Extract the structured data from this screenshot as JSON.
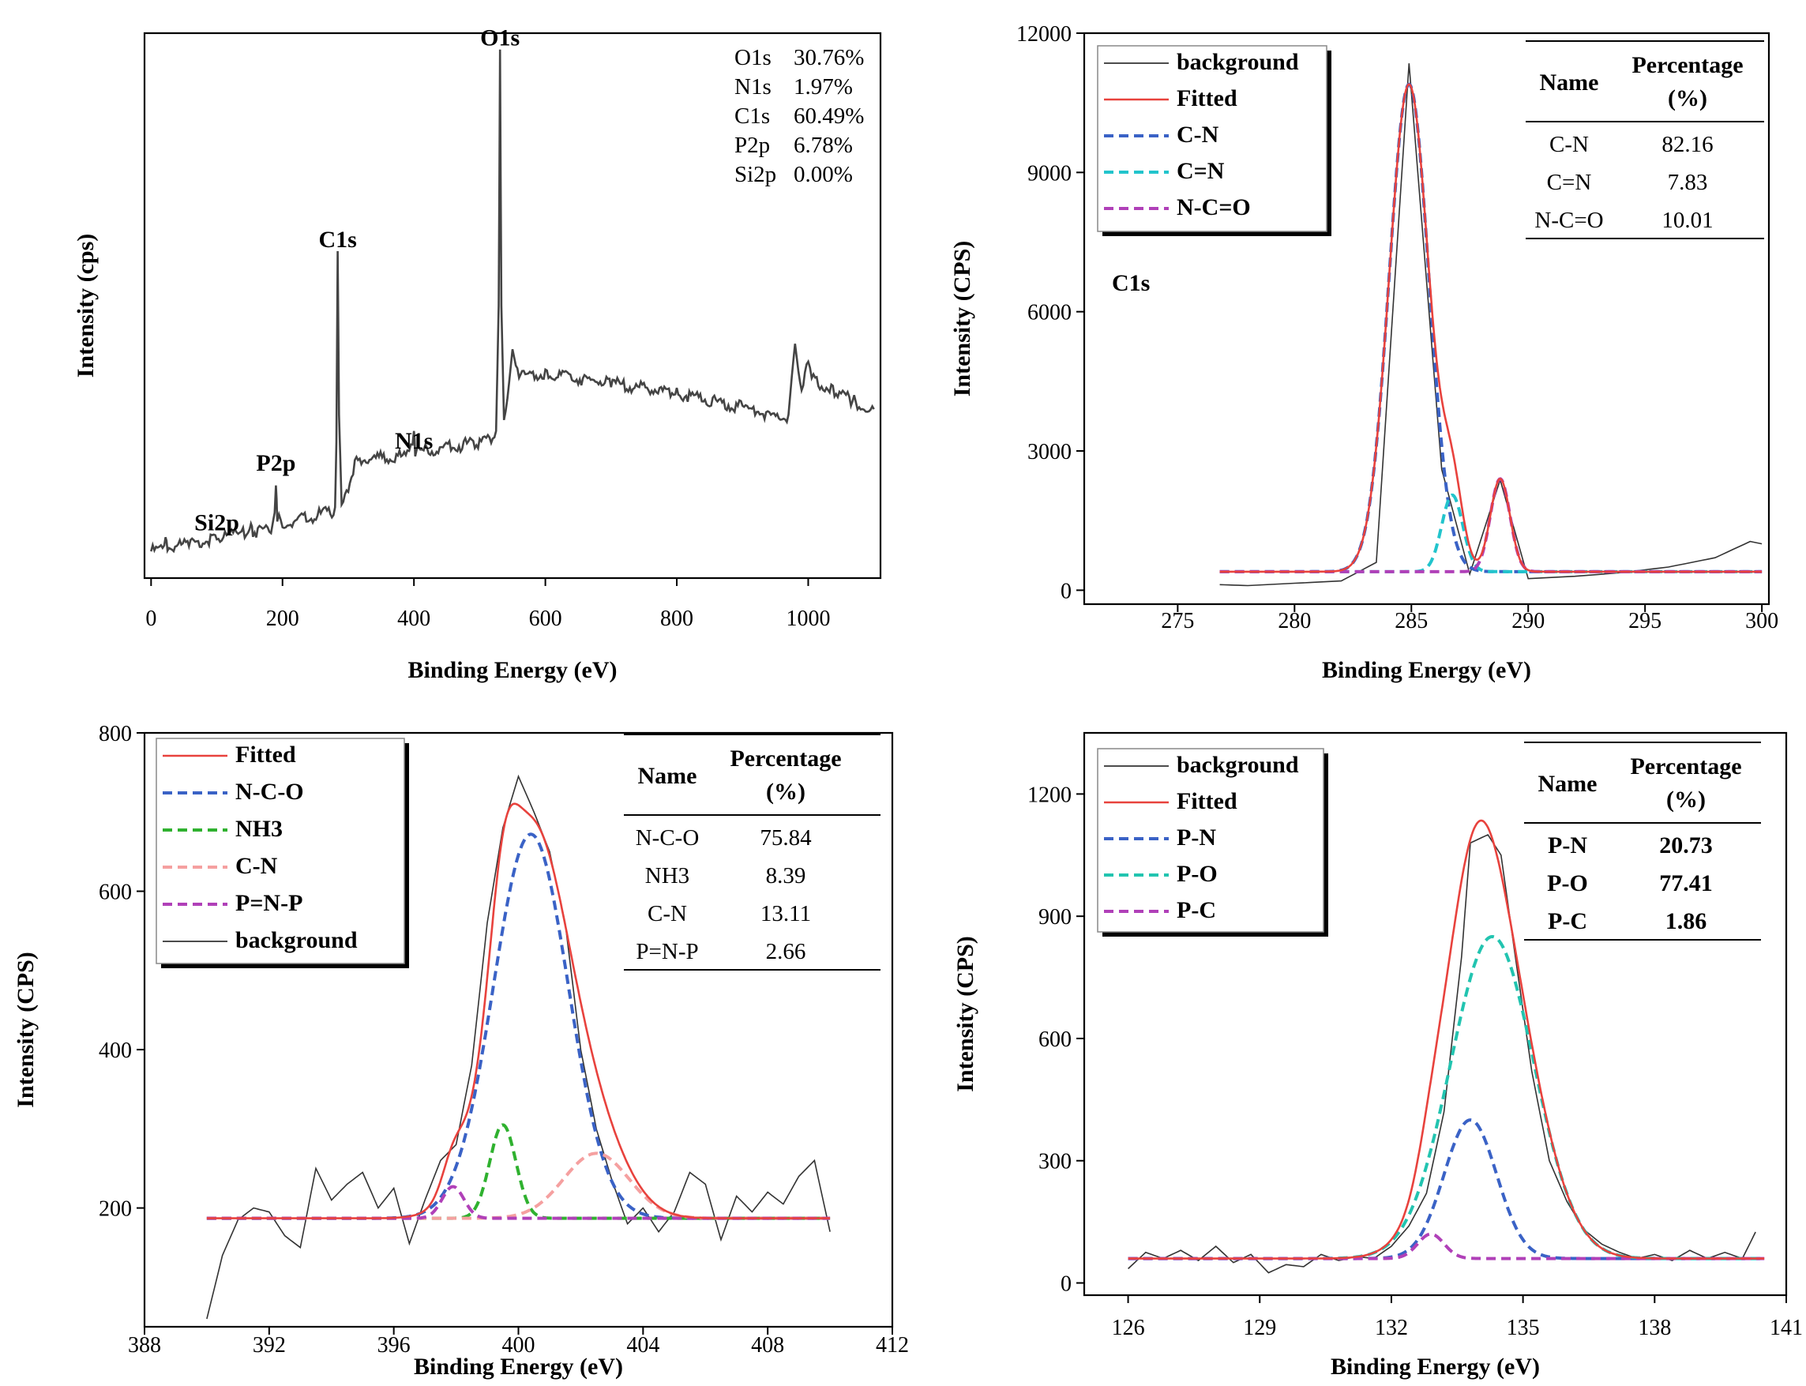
{
  "chart_data": [
    {
      "type": "line",
      "panel": "survey",
      "xlabel": "Binding Energy (eV)",
      "ylabel": "Intensity (cps)",
      "xlim": [
        -10,
        1110
      ],
      "ylim": [
        0,
        1
      ],
      "x_ticks": [
        0,
        200,
        400,
        600,
        800,
        1000
      ],
      "y_ticks_shown": false,
      "peak_labels": [
        {
          "text": "Si2p",
          "x": 100,
          "y": 0.07
        },
        {
          "text": "P2p",
          "x": 190,
          "y": 0.18
        },
        {
          "text": "C1s",
          "x": 284,
          "y": 0.59
        },
        {
          "text": "N1s",
          "x": 400,
          "y": 0.22
        },
        {
          "text": "O1s",
          "x": 531,
          "y": 0.96
        }
      ],
      "composition": [
        {
          "element": "O1s",
          "value": "30.76%"
        },
        {
          "element": "N1s",
          "value": "1.97%"
        },
        {
          "element": "C1s",
          "value": "60.49%"
        },
        {
          "element": "P2p",
          "value": "6.78%"
        },
        {
          "element": "Si2p",
          "value": "0.00%"
        }
      ],
      "series": [
        {
          "values": [
            [
              0,
              0.055
            ],
            [
              20,
              0.06
            ],
            [
              22,
              0.075
            ],
            [
              25,
              0.062
            ],
            [
              60,
              0.068
            ],
            [
              100,
              0.08
            ],
            [
              130,
              0.085
            ],
            [
              150,
              0.09
            ],
            [
              152,
              0.1
            ],
            [
              155,
              0.09
            ],
            [
              185,
              0.1
            ],
            [
              188,
              0.12
            ],
            [
              190,
              0.17
            ],
            [
              192,
              0.12
            ],
            [
              200,
              0.105
            ],
            [
              280,
              0.13
            ],
            [
              282,
              0.25
            ],
            [
              284,
              0.6
            ],
            [
              286,
              0.3
            ],
            [
              290,
              0.135
            ],
            [
              300,
              0.17
            ],
            [
              310,
              0.22
            ],
            [
              330,
              0.225
            ],
            [
              390,
              0.23
            ],
            [
              398,
              0.245
            ],
            [
              400,
              0.27
            ],
            [
              402,
              0.24
            ],
            [
              420,
              0.24
            ],
            [
              500,
              0.255
            ],
            [
              525,
              0.27
            ],
            [
              529,
              0.5
            ],
            [
              531,
              0.97
            ],
            [
              533,
              0.5
            ],
            [
              537,
              0.3
            ],
            [
              545,
              0.36
            ],
            [
              550,
              0.42
            ],
            [
              555,
              0.39
            ],
            [
              560,
              0.38
            ],
            [
              600,
              0.38
            ],
            [
              700,
              0.365
            ],
            [
              800,
              0.345
            ],
            [
              900,
              0.32
            ],
            [
              960,
              0.3
            ],
            [
              970,
              0.3
            ],
            [
              975,
              0.37
            ],
            [
              980,
              0.43
            ],
            [
              985,
              0.38
            ],
            [
              990,
              0.34
            ],
            [
              1000,
              0.41
            ],
            [
              1008,
              0.37
            ],
            [
              1040,
              0.35
            ],
            [
              1070,
              0.33
            ],
            [
              1090,
              0.32
            ],
            [
              1100,
              0.31
            ]
          ]
        }
      ]
    },
    {
      "type": "line",
      "panel": "C1s",
      "xlabel": "Binding Energy (eV)",
      "ylabel": "Intensity (CPS)",
      "panel_label": "C1s",
      "xlim": [
        271,
        300.3
      ],
      "ylim": [
        -300,
        12000
      ],
      "x_ticks": [
        275,
        280,
        285,
        290,
        295,
        300
      ],
      "y_ticks": [
        0,
        3000,
        6000,
        9000,
        12000
      ],
      "legend": [
        "background",
        "Fitted",
        "C-N",
        "C=N",
        "N-C=O"
      ],
      "legend_placement": "top-left",
      "table": {
        "headers": [
          "Name",
          "Percentage",
          "(%)"
        ],
        "rows": [
          [
            "C-N",
            "82.16"
          ],
          [
            "C=N",
            "7.83"
          ],
          [
            "N-C=O",
            "10.01"
          ]
        ]
      },
      "baseline": 400,
      "x_range": [
        276.8,
        300
      ],
      "components": [
        {
          "name": "C-N",
          "color": "#3a62c6",
          "center": 284.9,
          "amplitude": 10500,
          "sigma": 0.85
        },
        {
          "name": "C=N",
          "color": "#22c4cc",
          "center": 286.75,
          "amplitude": 1650,
          "sigma": 0.45
        },
        {
          "name": "N-C=O",
          "color": "#b040b8",
          "center": 288.8,
          "amplitude": 2000,
          "sigma": 0.42
        }
      ],
      "background": [
        [
          276.8,
          120
        ],
        [
          278,
          100
        ],
        [
          280,
          150
        ],
        [
          282,
          200
        ],
        [
          283.5,
          600
        ],
        [
          284.9,
          11350
        ],
        [
          286.3,
          2600
        ],
        [
          287.5,
          350
        ],
        [
          288.8,
          2380
        ],
        [
          290,
          250
        ],
        [
          292,
          300
        ],
        [
          294,
          380
        ],
        [
          296,
          500
        ],
        [
          298,
          700
        ],
        [
          299.5,
          1050
        ],
        [
          300,
          1000
        ]
      ]
    },
    {
      "type": "line",
      "panel": "N1s",
      "xlabel": "Binding Energy (eV)",
      "ylabel": "Intensity (CPS)",
      "xlim": [
        388,
        412
      ],
      "ylim": [
        50,
        800
      ],
      "x_ticks": [
        388,
        392,
        396,
        400,
        404,
        408,
        412
      ],
      "y_ticks": [
        200,
        400,
        600,
        800
      ],
      "legend": [
        "Fitted",
        "N-C-O",
        "NH3",
        "C-N",
        "P=N-P",
        "background"
      ],
      "legend_placement": "top-left",
      "table": {
        "headers": [
          "Name",
          "Percentage",
          "(%)"
        ],
        "rows": [
          [
            "N-C-O",
            "75.84"
          ],
          [
            "NH3",
            "8.39"
          ],
          [
            "C-N",
            "13.11"
          ],
          [
            "P=N-P",
            "2.66"
          ]
        ]
      },
      "baseline": 187,
      "x_range": [
        390,
        410
      ],
      "components": [
        {
          "name": "N-C-O",
          "color": "#3a62c6",
          "center": 400.4,
          "amplitude": 485,
          "sigma": 1.2
        },
        {
          "name": "NH3",
          "color": "#2fb12f",
          "center": 399.5,
          "amplitude": 118,
          "sigma": 0.42
        },
        {
          "name": "C-N",
          "color": "#f5a0a0",
          "center": 402.5,
          "amplitude": 82,
          "sigma": 1.05
        },
        {
          "name": "P=N-P",
          "color": "#b040b8",
          "center": 397.9,
          "amplitude": 40,
          "sigma": 0.35
        }
      ],
      "background": [
        [
          390,
          60
        ],
        [
          390.5,
          140
        ],
        [
          391,
          185
        ],
        [
          391.5,
          200
        ],
        [
          392,
          195
        ],
        [
          392.5,
          165
        ],
        [
          393,
          150
        ],
        [
          393.5,
          250
        ],
        [
          394,
          210
        ],
        [
          394.5,
          230
        ],
        [
          395,
          245
        ],
        [
          395.5,
          200
        ],
        [
          396,
          225
        ],
        [
          396.5,
          155
        ],
        [
          397,
          210
        ],
        [
          397.5,
          260
        ],
        [
          398,
          280
        ],
        [
          398.5,
          380
        ],
        [
          399,
          560
        ],
        [
          399.5,
          680
        ],
        [
          400,
          745
        ],
        [
          400.5,
          700
        ],
        [
          401,
          650
        ],
        [
          401.5,
          560
        ],
        [
          402,
          400
        ],
        [
          402.5,
          300
        ],
        [
          403,
          235
        ],
        [
          403.5,
          180
        ],
        [
          404,
          200
        ],
        [
          404.5,
          170
        ],
        [
          405,
          195
        ],
        [
          405.5,
          245
        ],
        [
          406,
          230
        ],
        [
          406.5,
          160
        ],
        [
          407,
          215
        ],
        [
          407.5,
          195
        ],
        [
          408,
          220
        ],
        [
          408.5,
          205
        ],
        [
          409,
          240
        ],
        [
          409.5,
          260
        ],
        [
          410,
          170
        ]
      ]
    },
    {
      "type": "line",
      "panel": "P2p",
      "xlabel": "Binding Energy (eV)",
      "ylabel": "Intensity (CPS)",
      "xlim": [
        125,
        141
      ],
      "ylim": [
        -30,
        1350
      ],
      "x_ticks": [
        126,
        129,
        132,
        135,
        138,
        141
      ],
      "y_ticks": [
        0,
        300,
        600,
        900,
        1200
      ],
      "legend": [
        "background",
        "Fitted",
        "P-N",
        "P-O",
        "P-C"
      ],
      "legend_placement": "top-left",
      "table": {
        "headers": [
          "Name",
          "Percentage",
          "(%)"
        ],
        "rows": [
          [
            "P-N",
            "20.73"
          ],
          [
            "P-O",
            "77.41"
          ],
          [
            "P-C",
            "1.86"
          ]
        ]
      },
      "baseline": 60,
      "x_range": [
        126,
        140.5
      ],
      "components": [
        {
          "name": "P-N",
          "color": "#3a62c6",
          "center": 133.8,
          "amplitude": 340,
          "sigma": 0.6
        },
        {
          "name": "P-O",
          "color": "#22c4b0",
          "center": 134.3,
          "amplitude": 790,
          "sigma": 0.95
        },
        {
          "name": "P-C",
          "color": "#b040b8",
          "center": 132.9,
          "amplitude": 60,
          "sigma": 0.3
        }
      ],
      "background": [
        [
          126,
          35
        ],
        [
          126.4,
          75
        ],
        [
          126.8,
          60
        ],
        [
          127.2,
          80
        ],
        [
          127.6,
          55
        ],
        [
          128,
          90
        ],
        [
          128.4,
          50
        ],
        [
          128.8,
          70
        ],
        [
          129.2,
          25
        ],
        [
          129.6,
          45
        ],
        [
          130,
          40
        ],
        [
          130.4,
          70
        ],
        [
          130.8,
          55
        ],
        [
          131.2,
          65
        ],
        [
          131.6,
          60
        ],
        [
          132,
          90
        ],
        [
          132.4,
          140
        ],
        [
          132.8,
          220
        ],
        [
          133.2,
          420
        ],
        [
          133.6,
          800
        ],
        [
          133.8,
          1080
        ],
        [
          134.2,
          1100
        ],
        [
          134.5,
          1050
        ],
        [
          134.8,
          820
        ],
        [
          135.2,
          520
        ],
        [
          135.6,
          300
        ],
        [
          136,
          200
        ],
        [
          136.4,
          130
        ],
        [
          136.8,
          95
        ],
        [
          137.2,
          75
        ],
        [
          137.6,
          60
        ],
        [
          138,
          70
        ],
        [
          138.4,
          55
        ],
        [
          138.8,
          80
        ],
        [
          139.2,
          60
        ],
        [
          139.6,
          75
        ],
        [
          140,
          60
        ],
        [
          140.3,
          125
        ]
      ]
    }
  ],
  "colors": {
    "background_trace": "#333333",
    "fitted": "#e8423d",
    "survey_trace": "#444444"
  }
}
